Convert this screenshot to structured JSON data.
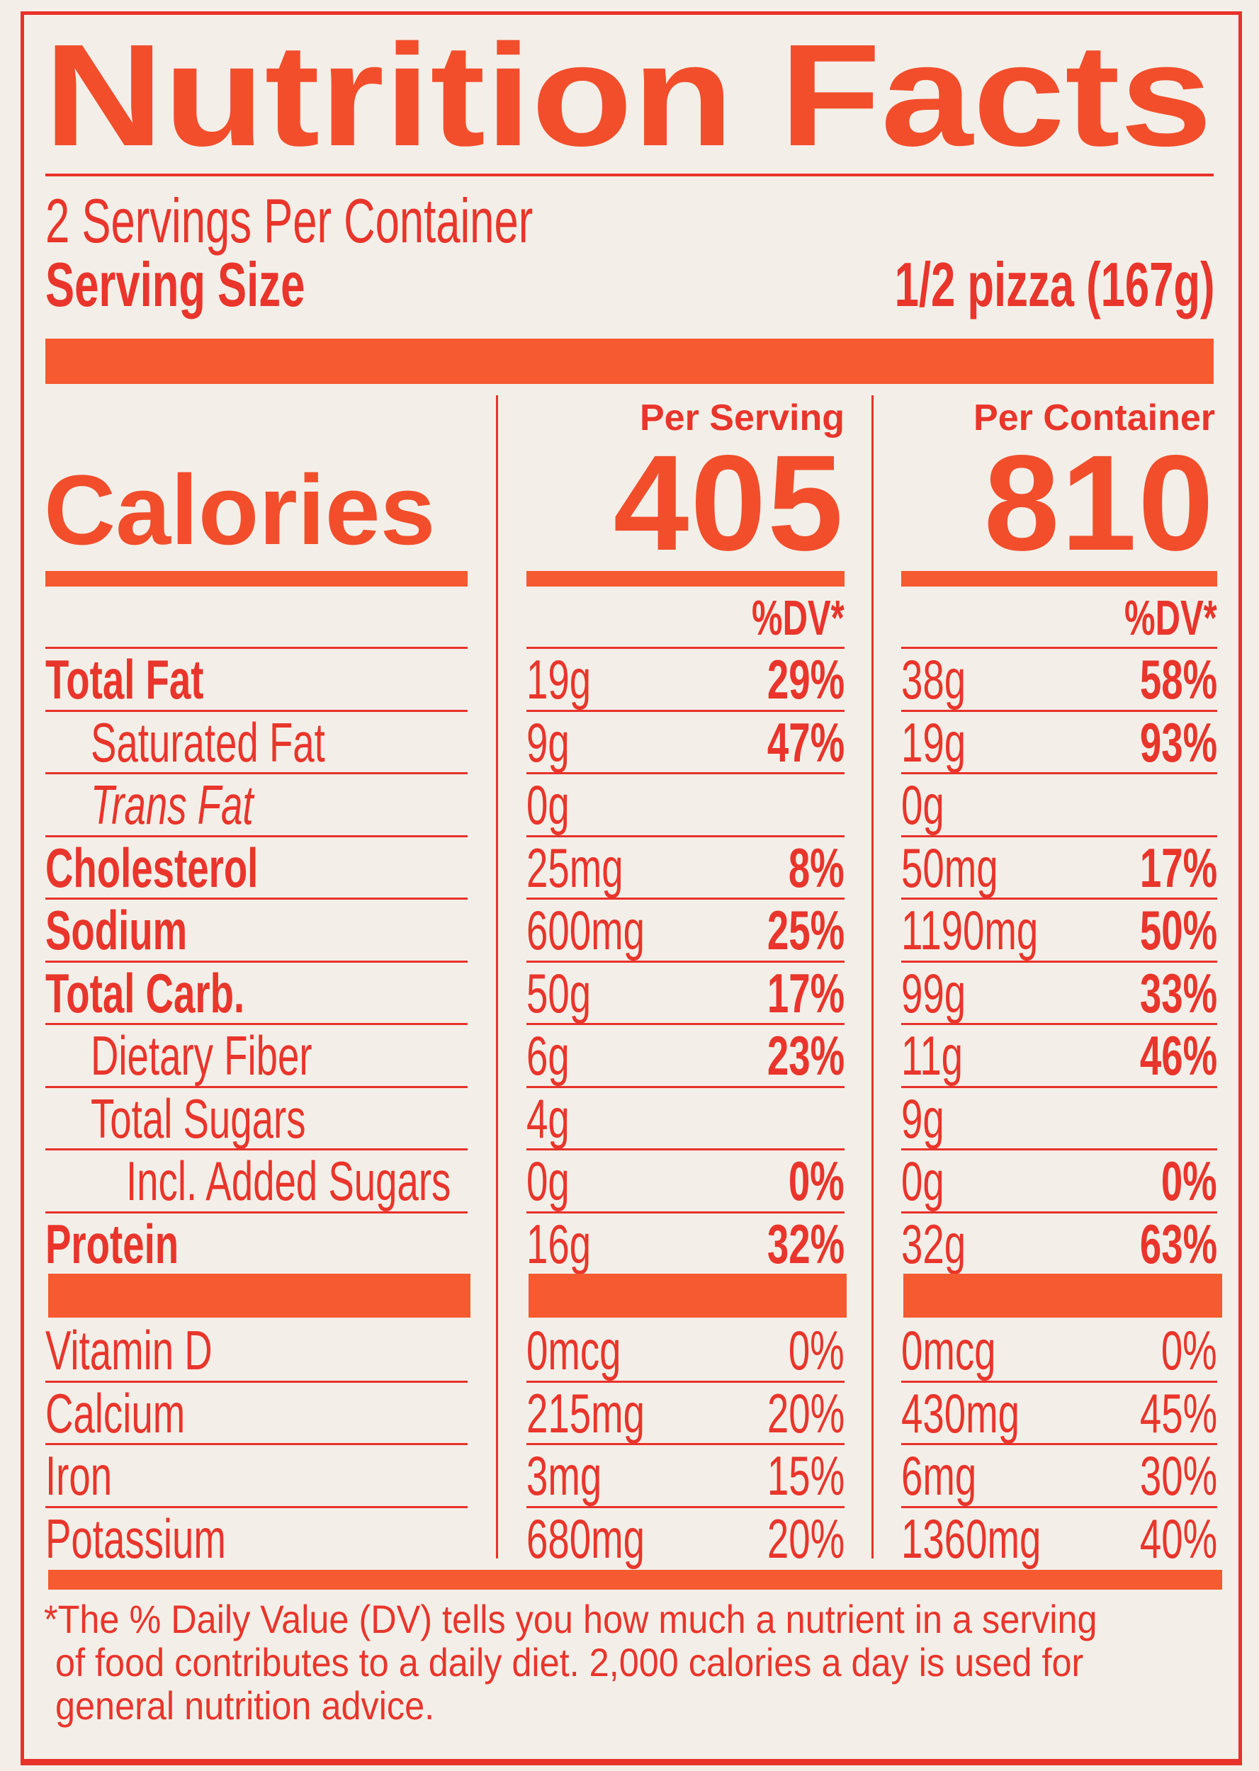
{
  "title": "Nutrition Facts",
  "servings_per_container": "2 Servings Per Container",
  "serving_size_label": "Serving Size",
  "serving_size_value": "1/2 pizza (167g)",
  "calories_label": "Calories",
  "columns": [
    {
      "heading": "Per Serving",
      "calories": "405",
      "dv_heading": "%DV*"
    },
    {
      "heading": "Per Container",
      "calories": "810",
      "dv_heading": "%DV*"
    }
  ],
  "nutrients": [
    {
      "label": "Total Fat",
      "style": "bold",
      "indent": 0,
      "serving_amount": "19g",
      "serving_dv": "29%",
      "container_amount": "38g",
      "container_dv": "58%"
    },
    {
      "label": "Saturated Fat",
      "style": "normal",
      "indent": 1,
      "serving_amount": "9g",
      "serving_dv": "47%",
      "container_amount": "19g",
      "container_dv": "93%"
    },
    {
      "label": "Trans Fat",
      "style": "italic",
      "indent": 1,
      "serving_amount": "0g",
      "serving_dv": "",
      "container_amount": "0g",
      "container_dv": ""
    },
    {
      "label": "Cholesterol",
      "style": "bold",
      "indent": 0,
      "serving_amount": "25mg",
      "serving_dv": "8%",
      "container_amount": "50mg",
      "container_dv": "17%"
    },
    {
      "label": "Sodium",
      "style": "bold",
      "indent": 0,
      "serving_amount": "600mg",
      "serving_dv": "25%",
      "container_amount": "1190mg",
      "container_dv": "50%"
    },
    {
      "label": "Total Carb.",
      "style": "bold",
      "indent": 0,
      "serving_amount": "50g",
      "serving_dv": "17%",
      "container_amount": "99g",
      "container_dv": "33%"
    },
    {
      "label": "Dietary Fiber",
      "style": "normal",
      "indent": 1,
      "serving_amount": "6g",
      "serving_dv": "23%",
      "container_amount": "11g",
      "container_dv": "46%"
    },
    {
      "label": "Total Sugars",
      "style": "normal",
      "indent": 1,
      "serving_amount": "4g",
      "serving_dv": "",
      "container_amount": "9g",
      "container_dv": ""
    },
    {
      "label": "Incl. Added Sugars",
      "style": "normal",
      "indent": 2,
      "serving_amount": "0g",
      "serving_dv": "0%",
      "container_amount": "0g",
      "container_dv": "0%"
    },
    {
      "label": "Protein",
      "style": "bold",
      "indent": 0,
      "serving_amount": "16g",
      "serving_dv": "32%",
      "container_amount": "32g",
      "container_dv": "63%"
    }
  ],
  "vitamins": [
    {
      "label": "Vitamin D",
      "serving_amount": "0mcg",
      "serving_dv": "0%",
      "container_amount": "0mcg",
      "container_dv": "0%"
    },
    {
      "label": "Calcium",
      "serving_amount": "215mg",
      "serving_dv": "20%",
      "container_amount": "430mg",
      "container_dv": "45%"
    },
    {
      "label": "Iron",
      "serving_amount": "3mg",
      "serving_dv": "15%",
      "container_amount": "6mg",
      "container_dv": "30%"
    },
    {
      "label": "Potassium",
      "serving_amount": "680mg",
      "serving_dv": "20%",
      "container_amount": "1360mg",
      "container_dv": "40%"
    }
  ],
  "footnote": [
    "*The % Daily Value (DV) tells you how much a nutrient in a serving",
    "of food contributes to a daily diet. 2,000 calories a day is used for",
    "general nutrition advice."
  ],
  "colors": {
    "accent": "#f24e2c",
    "text": "#e9352b",
    "background": "#f3efe8"
  }
}
